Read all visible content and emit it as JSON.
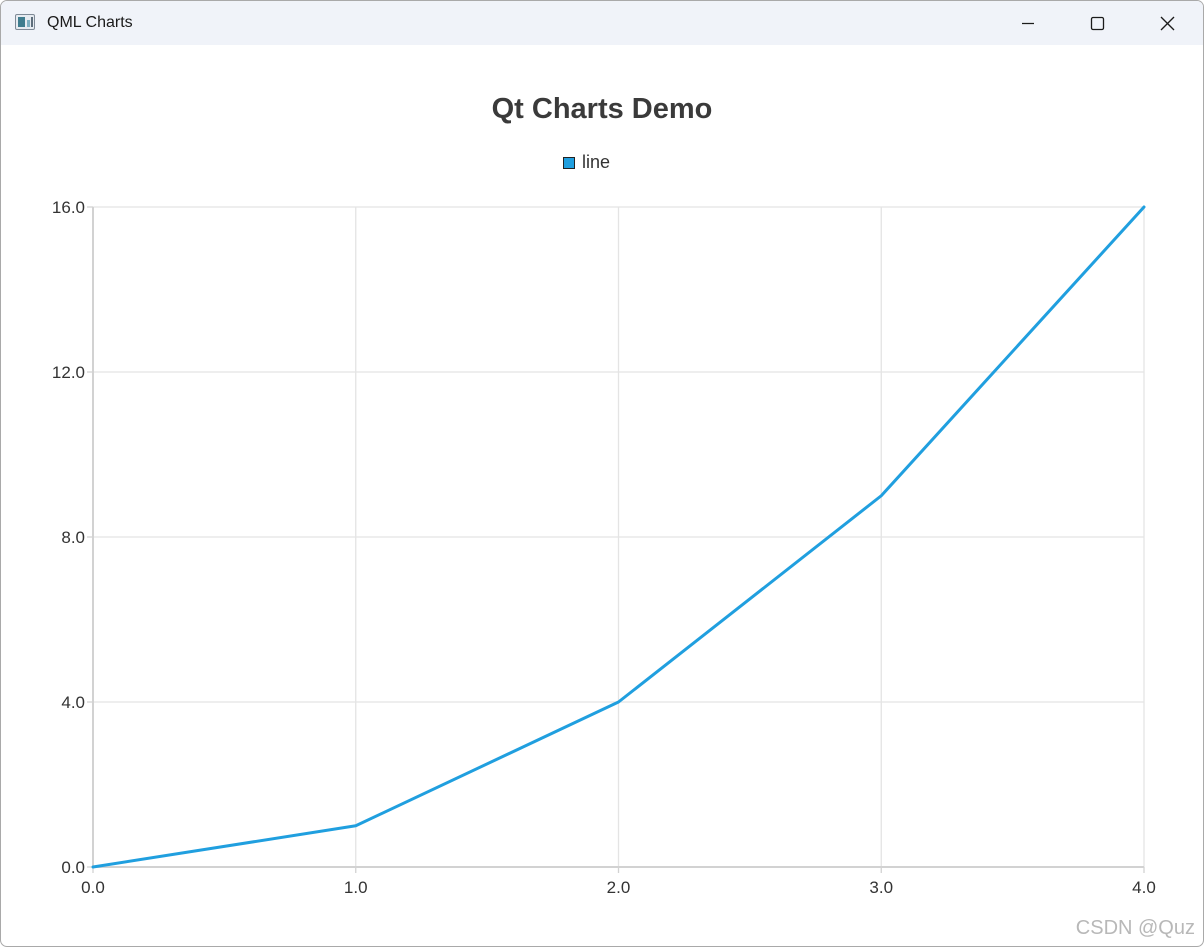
{
  "window": {
    "title": "QML Charts",
    "controls": [
      "minimize",
      "maximize",
      "close"
    ]
  },
  "chart_data": {
    "type": "line",
    "title": "Qt Charts Demo",
    "legend_position": "top",
    "grid": true,
    "xlim": [
      0,
      4
    ],
    "ylim": [
      0,
      16
    ],
    "x_ticks": [
      "0.0",
      "1.0",
      "2.0",
      "3.0",
      "4.0"
    ],
    "y_ticks": [
      "0.0",
      "4.0",
      "8.0",
      "12.0",
      "16.0"
    ],
    "series": [
      {
        "name": "line",
        "color": "#209fdf",
        "x": [
          0,
          1,
          2,
          3,
          4
        ],
        "y": [
          0,
          1,
          4,
          9,
          16
        ]
      }
    ]
  },
  "watermark": "CSDN @Quz"
}
